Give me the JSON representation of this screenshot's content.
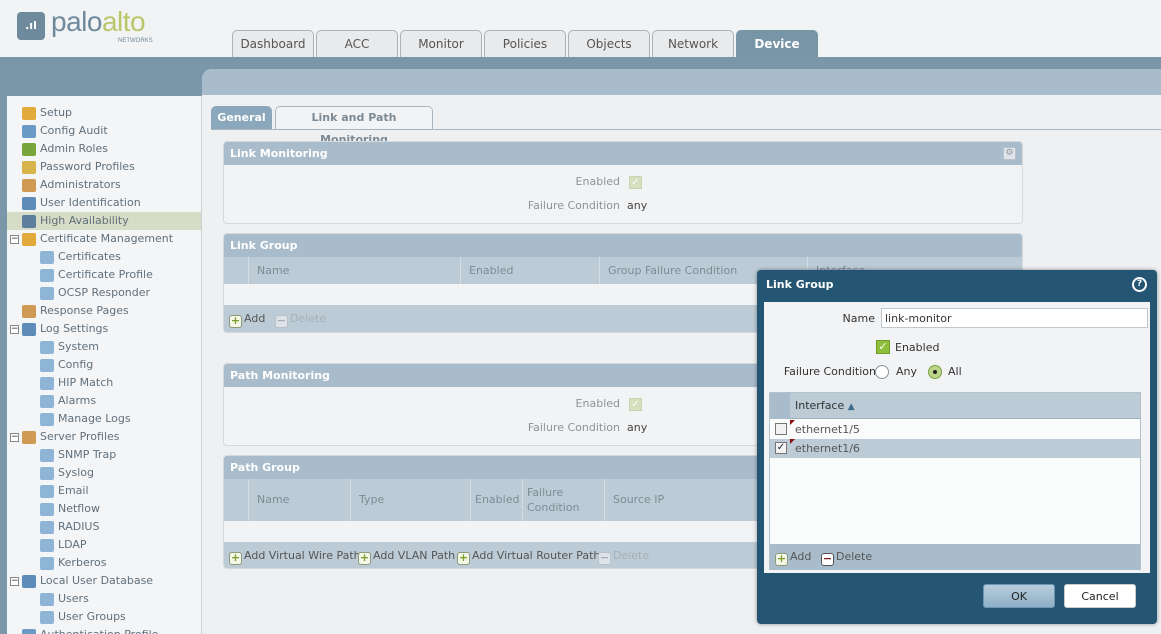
{
  "brand": {
    "name_part1": "palo",
    "name_part2": "alto",
    "sub": "NETWORKS"
  },
  "nav_tabs": [
    {
      "label": "Dashboard"
    },
    {
      "label": "ACC"
    },
    {
      "label": "Monitor"
    },
    {
      "label": "Policies"
    },
    {
      "label": "Objects"
    },
    {
      "label": "Network"
    },
    {
      "label": "Device",
      "active": true
    }
  ],
  "sidebar": {
    "items": [
      {
        "label": "Setup",
        "level": 0
      },
      {
        "label": "Config Audit",
        "level": 0
      },
      {
        "label": "Admin Roles",
        "level": 0
      },
      {
        "label": "Password Profiles",
        "level": 0
      },
      {
        "label": "Administrators",
        "level": 0
      },
      {
        "label": "User Identification",
        "level": 0
      },
      {
        "label": "High Availability",
        "level": 0,
        "selected": true
      },
      {
        "label": "Certificate Management",
        "level": 0,
        "expanded": true
      },
      {
        "label": "Certificates",
        "level": 1
      },
      {
        "label": "Certificate Profile",
        "level": 1
      },
      {
        "label": "OCSP Responder",
        "level": 1
      },
      {
        "label": "Response Pages",
        "level": 0
      },
      {
        "label": "Log Settings",
        "level": 0,
        "expanded": true
      },
      {
        "label": "System",
        "level": 1
      },
      {
        "label": "Config",
        "level": 1
      },
      {
        "label": "HIP Match",
        "level": 1
      },
      {
        "label": "Alarms",
        "level": 1
      },
      {
        "label": "Manage Logs",
        "level": 1
      },
      {
        "label": "Server Profiles",
        "level": 0,
        "expanded": true
      },
      {
        "label": "SNMP Trap",
        "level": 1
      },
      {
        "label": "Syslog",
        "level": 1
      },
      {
        "label": "Email",
        "level": 1
      },
      {
        "label": "Netflow",
        "level": 1
      },
      {
        "label": "RADIUS",
        "level": 1
      },
      {
        "label": "LDAP",
        "level": 1
      },
      {
        "label": "Kerberos",
        "level": 1
      },
      {
        "label": "Local User Database",
        "level": 0,
        "expanded": true
      },
      {
        "label": "Users",
        "level": 1
      },
      {
        "label": "User Groups",
        "level": 1
      },
      {
        "label": "Authentication Profile",
        "level": 0
      }
    ]
  },
  "sub_tabs": {
    "general": "General",
    "link_path": "Link and Path Monitoring"
  },
  "link_monitoring": {
    "title": "Link Monitoring",
    "enabled_label": "Enabled",
    "enabled": true,
    "failure_label": "Failure Condition",
    "failure_value": "any"
  },
  "link_group": {
    "title": "Link Group",
    "columns": [
      "Name",
      "Enabled",
      "Group Failure Condition",
      "Interface"
    ],
    "add": "Add",
    "delete": "Delete"
  },
  "path_monitoring": {
    "title": "Path Monitoring",
    "enabled_label": "Enabled",
    "enabled": true,
    "failure_label": "Failure Condition",
    "failure_value": "any"
  },
  "path_group": {
    "title": "Path Group",
    "columns": [
      "Name",
      "Type",
      "Enabled",
      "Failure Condition",
      "Source IP"
    ],
    "add_vwire": "Add Virtual Wire Path",
    "add_vlan": "Add VLAN Path",
    "add_vr": "Add Virtual Router Path",
    "delete": "Delete"
  },
  "dialog": {
    "title": "Link Group",
    "name_label": "Name",
    "name_value": "link-monitor",
    "enabled_label": "Enabled",
    "enabled": true,
    "failure_label": "Failure Condition",
    "any": "Any",
    "all": "All",
    "failure_selected": "All",
    "table_header": "Interface",
    "rows": [
      {
        "interface": "ethernet1/5",
        "checked": false
      },
      {
        "interface": "ethernet1/6",
        "checked": true
      }
    ],
    "add": "Add",
    "delete": "Delete",
    "ok": "OK",
    "cancel": "Cancel"
  },
  "colors": {
    "band": "#7a97aa",
    "panel_header": "#a9bccb",
    "dialog": "#245673",
    "active_tab": "#7895a8"
  }
}
